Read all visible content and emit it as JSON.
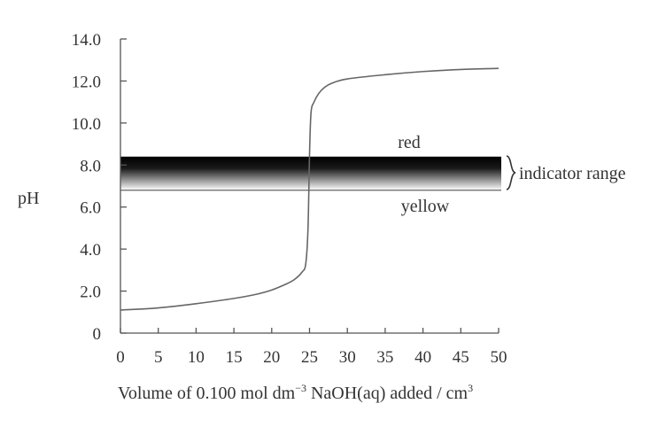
{
  "chart_data": {
    "type": "line",
    "xlabel_prefix": "Volume of 0.100 mol dm",
    "xlabel_sup1": "−3",
    "xlabel_mid": " NaOH(aq) added / cm",
    "xlabel_sup2": "3",
    "ylabel": "pH",
    "xlim": [
      0,
      50
    ],
    "ylim": [
      0,
      14
    ],
    "x_ticks": [
      0,
      5,
      10,
      15,
      20,
      25,
      30,
      35,
      40,
      45,
      50
    ],
    "x_tick_labels": [
      "0",
      "5",
      "10",
      "15",
      "20",
      "25",
      "30",
      "35",
      "40",
      "45",
      "50"
    ],
    "y_ticks": [
      0,
      2,
      4,
      6,
      8,
      10,
      12,
      14
    ],
    "y_tick_labels": [
      "0",
      "2.0",
      "4.0",
      "6.0",
      "8.0",
      "10.0",
      "12.0",
      "14.0"
    ],
    "series": [
      {
        "x": [
          0,
          5,
          10,
          15,
          18,
          20,
          22,
          23,
          24,
          24.5,
          24.8,
          25.0,
          25.2,
          25.6,
          26.2,
          27,
          28,
          30,
          35,
          40,
          45,
          50
        ],
        "y": [
          1.1,
          1.2,
          1.4,
          1.65,
          1.85,
          2.05,
          2.35,
          2.55,
          2.9,
          3.3,
          5.0,
          8.5,
          10.5,
          11.0,
          11.4,
          11.7,
          11.9,
          12.1,
          12.3,
          12.45,
          12.55,
          12.6
        ]
      }
    ],
    "indicator_band": {
      "y_low": 6.8,
      "y_high": 8.4
    },
    "annotations": {
      "upper_color": "red",
      "lower_color": "yellow",
      "range_label": "indicator range"
    }
  }
}
